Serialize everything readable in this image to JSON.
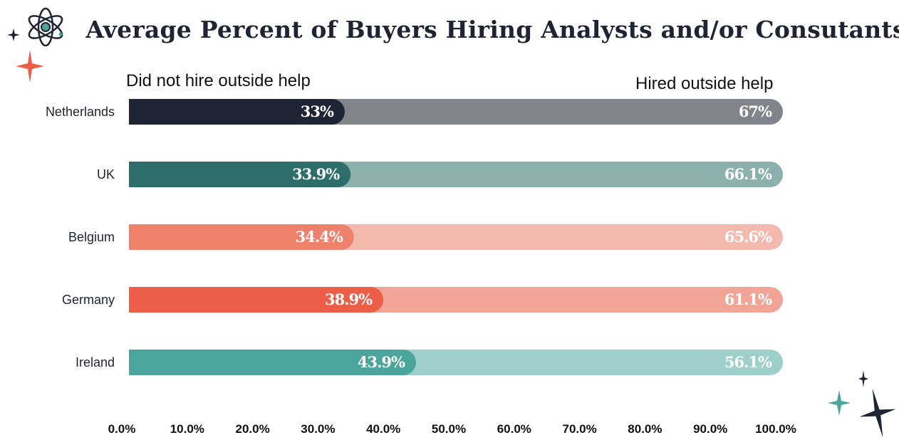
{
  "chart_data": {
    "type": "bar",
    "orientation": "horizontal",
    "stacked": true,
    "title": "Average Percent of Buyers Hiring Analysts and/or Consutants",
    "categories": [
      "Netherlands",
      "UK",
      "Belgium",
      "Germany",
      "Ireland"
    ],
    "series": [
      {
        "name": "Did not hire outside help",
        "values": [
          33,
          33.9,
          34.4,
          38.9,
          43.9
        ],
        "labels": [
          "33%",
          "33.9%",
          "34.4%",
          "38.9%",
          "43.9%"
        ],
        "colors": [
          "#1e2433",
          "#2e6e6a",
          "#ef806c",
          "#ec5e47",
          "#4ca59c"
        ]
      },
      {
        "name": "Hired outside help",
        "values": [
          67,
          66.1,
          65.6,
          61.1,
          56.1
        ],
        "labels": [
          "67%",
          "66.1%",
          "65.6%",
          "61.1%",
          "56.1%"
        ],
        "colors": [
          "#82848c",
          "#8cb0ad",
          "#f4b9ad",
          "#f2a597",
          "#9ecfca"
        ]
      }
    ],
    "xlim": [
      0,
      100
    ],
    "x_ticks": [
      "0.0%",
      "10.0%",
      "20.0%",
      "30.0%",
      "40.0%",
      "50.0%",
      "60.0%",
      "70.0%",
      "80.0%",
      "90.0%",
      "100.0%"
    ],
    "grid": false,
    "legend_placement": "top, labels at left and right ends"
  },
  "decorations": {
    "top_left": [
      "atom-icon",
      "small-sparkle-icon",
      "orange-sparkle-icon"
    ],
    "bottom_right": [
      "teal-sparkle-icon",
      "small-sparkle-icon",
      "large-sparkle-icon"
    ],
    "colors": {
      "navy": "#1e2433",
      "orange": "#ec5e47",
      "teal": "#4ca59c"
    }
  }
}
